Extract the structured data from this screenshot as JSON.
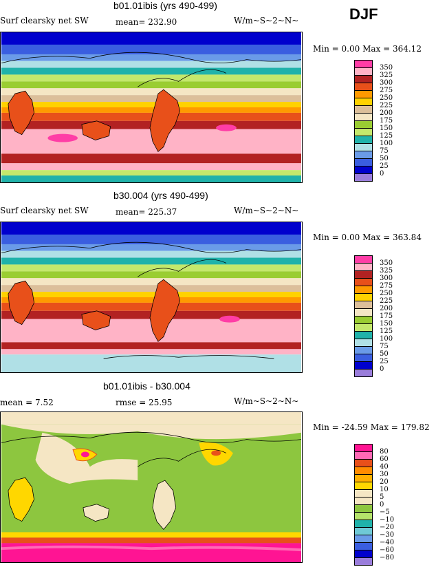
{
  "season": "DJF",
  "panels": [
    {
      "title": "b01.01ibis (yrs 490-499)",
      "left_label": "Surf clearsky net SW",
      "mean_text": "mean= 232.90",
      "units": "W/m~S~2~N~",
      "minmax": "Min =   0.00 Max = 364.12",
      "levels": [
        "350",
        "325",
        "300",
        "275",
        "250",
        "225",
        "200",
        "175",
        "150",
        "125",
        "100",
        "75",
        "50",
        "25",
        "0"
      ],
      "colors": [
        "#ff3da6",
        "#ffb3c6",
        "#b22222",
        "#e8501a",
        "#ff9a00",
        "#ffd200",
        "#dcbf9a",
        "#f5e6c4",
        "#9acd32",
        "#c4e86c",
        "#20b2aa",
        "#b0e0e6",
        "#6a9be8",
        "#3a5ee0",
        "#0000cd",
        "#9a7ddb"
      ]
    },
    {
      "title": "b30.004 (yrs 490-499)",
      "left_label": "Surf clearsky net SW",
      "mean_text": "mean= 225.37",
      "units": "W/m~S~2~N~",
      "minmax": "Min =   0.00 Max = 363.84",
      "levels": [
        "350",
        "325",
        "300",
        "275",
        "250",
        "225",
        "200",
        "175",
        "150",
        "125",
        "100",
        "75",
        "50",
        "25",
        "0"
      ],
      "colors": [
        "#ff3da6",
        "#ffb3c6",
        "#b22222",
        "#e8501a",
        "#ff9a00",
        "#ffd200",
        "#dcbf9a",
        "#f5e6c4",
        "#9acd32",
        "#c4e86c",
        "#20b2aa",
        "#b0e0e6",
        "#6a9be8",
        "#3a5ee0",
        "#0000cd",
        "#9a7ddb"
      ]
    },
    {
      "title": "b01.01ibis - b30.004",
      "left_label": "mean =    7.52",
      "mean_text": "rmse =   25.95",
      "units": "W/m~S~2~N~",
      "minmax": "Min = -24.59 Max = 179.82",
      "levels": [
        "80",
        "60",
        "40",
        "30",
        "20",
        "10",
        "5",
        "0",
        "−5",
        "−10",
        "−20",
        "−30",
        "−40",
        "−60",
        "−80"
      ],
      "colors": [
        "#ff1493",
        "#ff69b4",
        "#e8501a",
        "#ff8c00",
        "#ffb000",
        "#ffd700",
        "#f5e6c4",
        "#f5e6c4",
        "#8dc63f",
        "#b5e36b",
        "#20b2aa",
        "#6fc9d6",
        "#6a9be8",
        "#3a5ee0",
        "#0000cd",
        "#9a7ddb"
      ]
    }
  ]
}
